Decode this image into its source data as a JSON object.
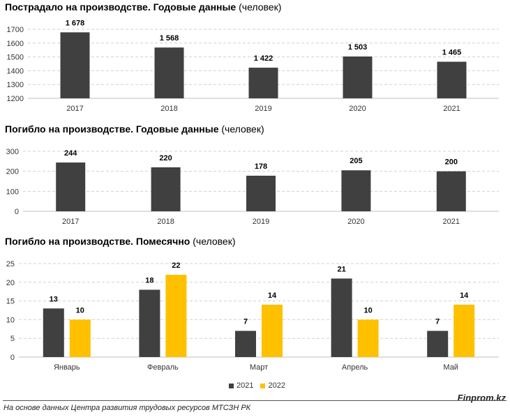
{
  "colors": {
    "series_2021": "#404040",
    "series_2022": "#FFC000"
  },
  "chart_data": [
    {
      "type": "bar",
      "title_bold": "Пострадало на производстве. Годовые данные",
      "title_unit": "(человек)",
      "categories": [
        "2017",
        "2018",
        "2019",
        "2020",
        "2021"
      ],
      "values": [
        1678,
        1568,
        1422,
        1503,
        1465
      ],
      "value_labels": [
        "1 678",
        "1 568",
        "1 422",
        "1 503",
        "1 465"
      ],
      "ylim": [
        1200,
        1700
      ],
      "yticks": [
        1200,
        1300,
        1400,
        1500,
        1600,
        1700
      ],
      "grid": true
    },
    {
      "type": "bar",
      "title_bold": "Погибло на производстве. Годовые данные",
      "title_unit": "(человек)",
      "categories": [
        "2017",
        "2018",
        "2019",
        "2020",
        "2021"
      ],
      "values": [
        244,
        220,
        178,
        205,
        200
      ],
      "value_labels": [
        "244",
        "220",
        "178",
        "205",
        "200"
      ],
      "ylim": [
        0,
        300
      ],
      "yticks": [
        0,
        100,
        200,
        300
      ],
      "grid": true
    },
    {
      "type": "bar",
      "title_bold": "Погибло на производстве. Помесячно",
      "title_unit": "(человек)",
      "categories": [
        "Январь",
        "Февраль",
        "Март",
        "Апрель",
        "Май"
      ],
      "series": [
        {
          "name": "2021",
          "values": [
            13,
            18,
            7,
            21,
            7
          ]
        },
        {
          "name": "2022",
          "values": [
            10,
            22,
            14,
            10,
            14
          ]
        }
      ],
      "ylim": [
        0,
        25
      ],
      "yticks": [
        0,
        5,
        10,
        15,
        20,
        25
      ],
      "grid": true,
      "legend_position": "bottom"
    }
  ],
  "footer": {
    "source": "На основе данных Центра развития трудовых ресурсов МТСЗН РК",
    "brand": "Finprom.kz"
  }
}
